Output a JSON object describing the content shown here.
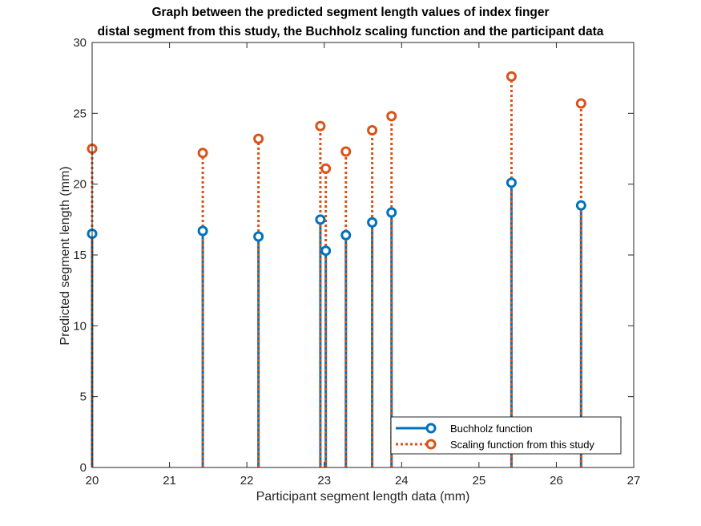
{
  "title_line1": "Graph between the predicted segment length values of index finger",
  "title_line2": "distal segment from this study, the Buchholz scaling function and the participant data",
  "chart_data": {
    "type": "scatter",
    "style": "stem",
    "xlabel": "Participant segment length data (mm)",
    "ylabel": "Predicted segment length (mm)",
    "xlim": [
      20,
      27
    ],
    "ylim": [
      0,
      30
    ],
    "xticks": [
      20,
      21,
      22,
      23,
      24,
      25,
      26,
      27
    ],
    "yticks": [
      0,
      5,
      10,
      15,
      20,
      25,
      30
    ],
    "grid": false,
    "legend_position": "bottom-right",
    "x": [
      20.0,
      21.43,
      22.15,
      22.95,
      23.02,
      23.28,
      23.62,
      23.87,
      25.42,
      26.32
    ],
    "series": [
      {
        "name": "Buchholz function",
        "color": "#0072BD",
        "line_style": "solid",
        "marker": "circle",
        "values": [
          16.5,
          16.7,
          16.3,
          17.5,
          15.3,
          16.4,
          17.3,
          18.0,
          20.1,
          18.5
        ]
      },
      {
        "name": "Scaling function from this study",
        "color": "#D95319",
        "line_style": "dotted",
        "marker": "circle",
        "values": [
          22.5,
          22.2,
          23.2,
          24.1,
          21.1,
          22.3,
          23.8,
          24.8,
          27.6,
          25.7
        ]
      }
    ]
  }
}
